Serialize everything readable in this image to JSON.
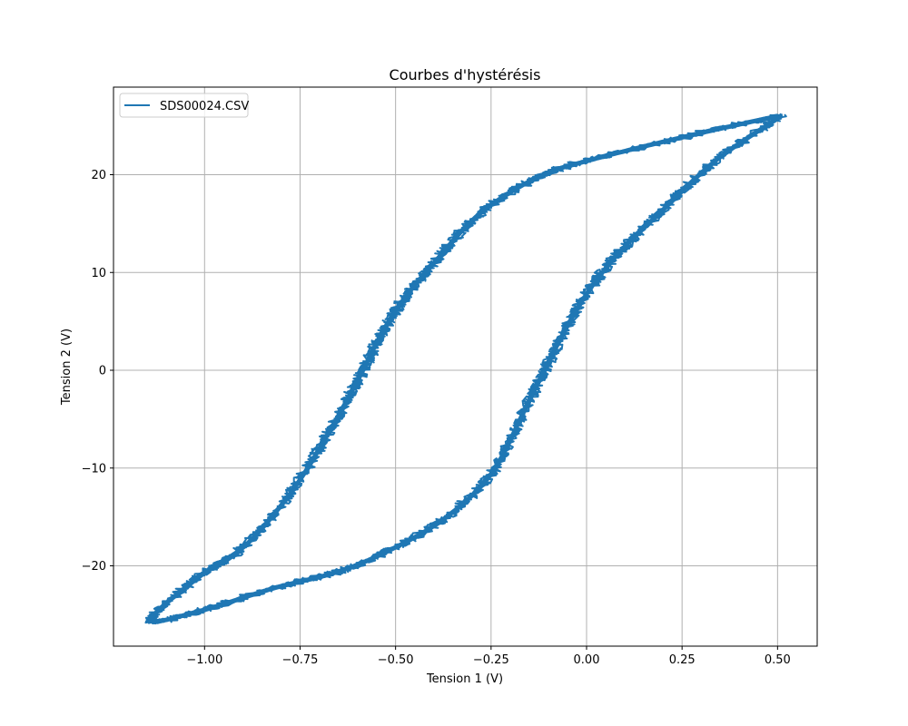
{
  "figure": {
    "title": "Courbes d'hystérésis",
    "xlabel": "Tension 1 (V)",
    "ylabel": "Tension 2 (V)",
    "legend": {
      "entries": [
        "SDS00024.CSV"
      ],
      "position": "upper left"
    },
    "colors": {
      "series": "#1f77b4",
      "grid": "#b0b0b0",
      "axes": "#000000"
    }
  },
  "chart_data": {
    "type": "line",
    "title": "Courbes d'hystérésis",
    "xlabel": "Tension 1 (V)",
    "ylabel": "Tension 2 (V)",
    "xlim": [
      -1.19,
      0.61
    ],
    "ylim": [
      -28.5,
      28.7
    ],
    "grid": true,
    "legend_position": "upper left",
    "x_ticks": [
      -1.0,
      -0.75,
      -0.5,
      -0.25,
      0.0,
      0.25,
      0.5
    ],
    "x_tick_labels": [
      "−1.00",
      "−0.75",
      "−0.50",
      "−0.25",
      "0.00",
      "0.25",
      "0.50"
    ],
    "y_ticks": [
      -20,
      -10,
      0,
      10,
      20
    ],
    "y_tick_labels": [
      "−20",
      "−10",
      "0",
      "10",
      "20"
    ],
    "series": [
      {
        "name": "SDS00024.CSV",
        "color": "#1f77b4",
        "description": "Noisy closed hysteresis loop; upper branch descends from (0.50, 26) to (-1.14, -25.5), lower branch ascends back",
        "x": [
          0.5,
          0.27,
          0.01,
          -0.13,
          -0.28,
          -0.39,
          -0.48,
          -0.54,
          -0.6,
          -0.68,
          -0.77,
          -0.89,
          -1.01,
          -1.14,
          -1.01,
          -0.82,
          -0.65,
          -0.51,
          -0.37,
          -0.25,
          -0.16,
          -0.09,
          -0.01,
          0.08,
          0.2,
          0.34,
          0.51
        ],
        "y": [
          26.0,
          24.0,
          21.5,
          19.7,
          16.0,
          11.4,
          7.2,
          3.5,
          -1.1,
          -6.7,
          -12.3,
          -17.8,
          -21.0,
          -25.5,
          -24.6,
          -22.3,
          -20.6,
          -18.3,
          -15.1,
          -10.6,
          -3.9,
          1.6,
          7.2,
          11.8,
          16.4,
          21.5,
          26.0
        ]
      }
    ]
  }
}
